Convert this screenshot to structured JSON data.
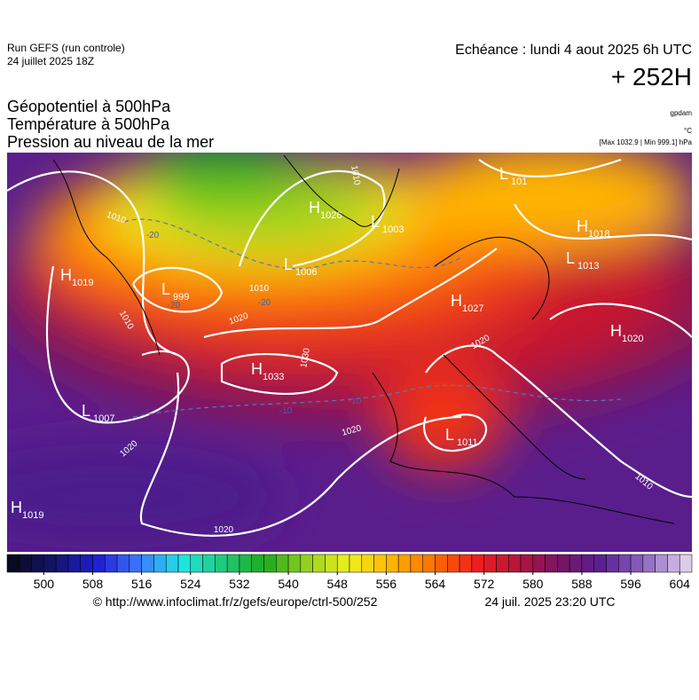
{
  "header": {
    "run": "Run GEFS (run controle)",
    "date": "24 juillet 2025 18Z",
    "echeance": "Echéance : lundi 4 aout 2025 6h UTC",
    "offset": "+ 252H"
  },
  "titles": [
    "Géopotentiel à 500hPa",
    "Température à 500hPa",
    "Pression au niveau de la mer"
  ],
  "units": {
    "geopotential": "gpdam",
    "temperature": "°C",
    "pressure": "[Max 1032.9 | Min 999.1] hPa"
  },
  "centers": [
    {
      "letter": "H",
      "value": "1019"
    },
    {
      "letter": "L",
      "value": "999"
    },
    {
      "letter": "H",
      "value": "1026"
    },
    {
      "letter": "L",
      "value": "1003"
    },
    {
      "letter": "L",
      "value": "1006"
    },
    {
      "letter": "L",
      "value": "101"
    },
    {
      "letter": "H",
      "value": "1018"
    },
    {
      "letter": "L",
      "value": "1013"
    },
    {
      "letter": "H",
      "value": "1027"
    },
    {
      "letter": "H",
      "value": "1020"
    },
    {
      "letter": "H",
      "value": "1033"
    },
    {
      "letter": "L",
      "value": "1007"
    },
    {
      "letter": "L",
      "value": "1011"
    },
    {
      "letter": "H",
      "value": "1019"
    }
  ],
  "isobar_labels": [
    "1010",
    "1010",
    "1010",
    "1010",
    "1020",
    "1030",
    "1020",
    "1020",
    "1020",
    "1020",
    "1010"
  ],
  "temperature_labels": [
    "-20",
    "-20",
    "-20",
    "-10",
    "-10"
  ],
  "colorbar": {
    "range": [
      494,
      606
    ],
    "step": 2,
    "ticks": [
      500,
      508,
      516,
      524,
      532,
      540,
      548,
      556,
      564,
      572,
      580,
      588,
      596,
      604
    ],
    "colors": [
      "#0a0a1e",
      "#14146e",
      "#1e1ed2",
      "#3c78ff",
      "#1ee6e6",
      "#1ec878",
      "#1eaa1e",
      "#96d21e",
      "#f0f01e",
      "#ffb400",
      "#ff6e00",
      "#f01e1e",
      "#b4143c",
      "#781464",
      "#5a1e96",
      "#8c64be",
      "#dccdeb"
    ]
  },
  "footer": {
    "source": "© http://www.infoclimat.fr/z/gefs/europe/ctrl-500/252",
    "generated": "24 juil. 2025 23:20 UTC"
  }
}
